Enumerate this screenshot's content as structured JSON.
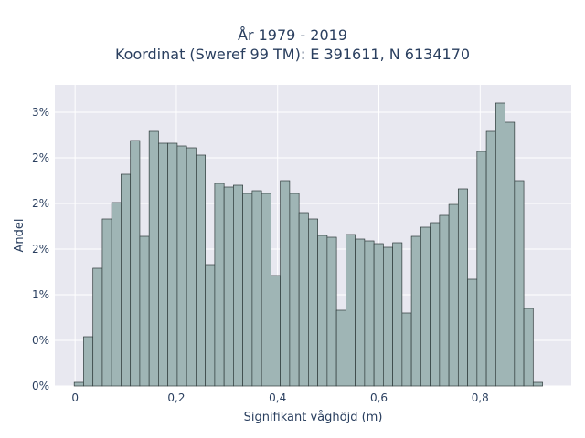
{
  "chart_data": {
    "type": "bar",
    "title": "År 1979 - 2019",
    "subtitle": "Koordinat (Sweref 99 TM): E 391611, N 6134170",
    "xlabel": "Signifikant våghöjd (m)",
    "ylabel": "Andel",
    "xlim": [
      -0.04,
      0.98
    ],
    "ylim": [
      0,
      3.3
    ],
    "grid": true,
    "bar_width": 0.0185,
    "bar_color": "#9fb5b5",
    "bar_edge_color": "#2f3b3b",
    "plot_bg": "#e8e8f0",
    "x_ticks": [
      {
        "value": 0,
        "label": "0"
      },
      {
        "value": 0.2,
        "label": "0,2"
      },
      {
        "value": 0.4,
        "label": "0,4"
      },
      {
        "value": 0.6,
        "label": "0,6"
      },
      {
        "value": 0.8,
        "label": "0,8"
      }
    ],
    "y_ticks": [
      {
        "value": 0,
        "label": "0%"
      },
      {
        "value": 0.5,
        "label": "0%"
      },
      {
        "value": 1.0,
        "label": "1%"
      },
      {
        "value": 1.5,
        "label": "2%"
      },
      {
        "value": 2.0,
        "label": "2%"
      },
      {
        "value": 2.5,
        "label": "2%"
      },
      {
        "value": 3.0,
        "label": "3%"
      }
    ],
    "x": [
      0.0075,
      0.026,
      0.0445,
      0.063,
      0.0815,
      0.1,
      0.1185,
      0.137,
      0.1555,
      0.174,
      0.1925,
      0.211,
      0.2295,
      0.248,
      0.2665,
      0.285,
      0.3035,
      0.322,
      0.3405,
      0.359,
      0.3775,
      0.396,
      0.4145,
      0.433,
      0.4515,
      0.47,
      0.4885,
      0.507,
      0.5255,
      0.544,
      0.5625,
      0.581,
      0.5995,
      0.618,
      0.6365,
      0.655,
      0.6735,
      0.692,
      0.7105,
      0.729,
      0.7475,
      0.766,
      0.7845,
      0.803,
      0.8215,
      0.84,
      0.8585,
      0.877,
      0.8955,
      0.914
    ],
    "values": [
      0.04,
      0.54,
      1.29,
      1.83,
      2.01,
      2.32,
      2.69,
      1.64,
      2.79,
      2.66,
      2.66,
      2.63,
      2.61,
      2.53,
      1.33,
      2.22,
      2.18,
      2.2,
      2.11,
      2.14,
      2.11,
      1.21,
      2.25,
      2.11,
      1.9,
      1.83,
      1.65,
      1.63,
      0.83,
      1.66,
      1.61,
      1.59,
      1.56,
      1.52,
      1.57,
      0.8,
      1.64,
      1.74,
      1.79,
      1.87,
      1.99,
      2.16,
      1.17,
      2.57,
      2.79,
      3.1,
      2.89,
      2.25,
      0.85,
      0.04
    ]
  }
}
